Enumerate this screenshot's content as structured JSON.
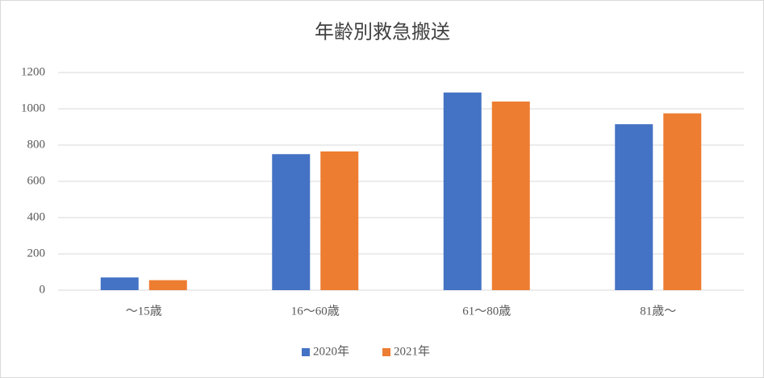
{
  "chart_data": {
    "type": "bar",
    "title": "年齢別救急搬送",
    "categories": [
      "～15歳",
      "16～60歳",
      "61～80歳",
      "81歳～"
    ],
    "series": [
      {
        "name": "2020年",
        "color": "#4472c4",
        "values": [
          70,
          750,
          1090,
          915
        ]
      },
      {
        "name": "2021年",
        "color": "#ed7d31",
        "values": [
          55,
          765,
          1040,
          975
        ]
      }
    ],
    "ylim": [
      0,
      1200
    ],
    "yticks": [
      0,
      200,
      400,
      600,
      800,
      1000,
      1200
    ],
    "grid": true,
    "legend": "bottom"
  }
}
